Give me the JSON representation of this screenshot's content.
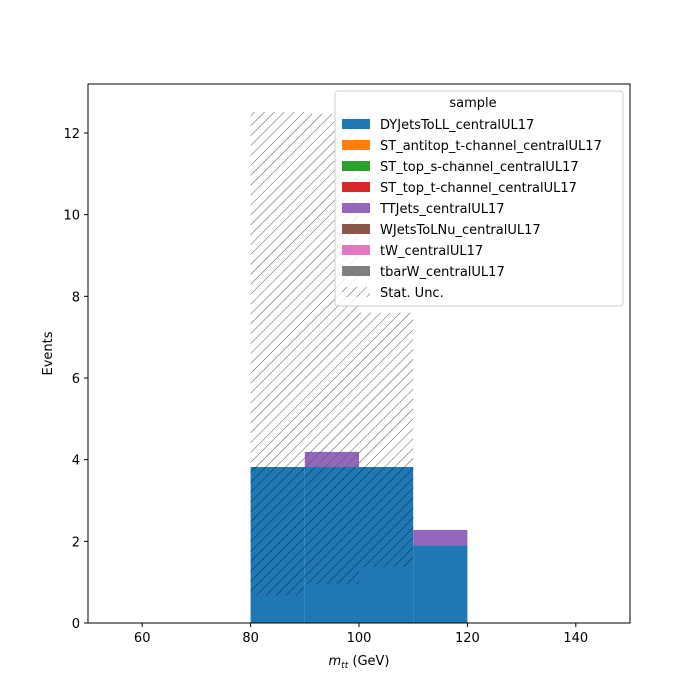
{
  "chart_data": {
    "type": "bar",
    "title": "",
    "xlabel_main": "m",
    "xlabel_sub": "tt",
    "xlabel_unit": " (GeV)",
    "ylabel": "Events",
    "xlim": [
      50,
      150
    ],
    "ylim": [
      0,
      13.2
    ],
    "xticks": [
      60,
      80,
      100,
      120,
      140
    ],
    "yticks": [
      0,
      2,
      4,
      6,
      8,
      10,
      12
    ],
    "bin_edges": [
      80,
      90,
      100,
      110,
      120
    ],
    "series": [
      {
        "name": "DYJetsToLL_centralUL17",
        "color": "#1f77b4",
        "values": [
          3.82,
          3.82,
          3.82,
          1.9
        ]
      },
      {
        "name": "ST_antitop_t-channel_centralUL17",
        "color": "#ff7f0e",
        "values": [
          0,
          0,
          0,
          0
        ]
      },
      {
        "name": "ST_top_s-channel_centralUL17",
        "color": "#2ca02c",
        "values": [
          0,
          0,
          0,
          0
        ]
      },
      {
        "name": "ST_top_t-channel_centralUL17",
        "color": "#d62728",
        "values": [
          0,
          0,
          0,
          0
        ]
      },
      {
        "name": "TTJets_centralUL17",
        "color": "#9467bd",
        "values": [
          0,
          0.37,
          0,
          0.38
        ]
      },
      {
        "name": "WJetsToLNu_centralUL17",
        "color": "#8c564b",
        "values": [
          0,
          0,
          0,
          0
        ]
      },
      {
        "name": "tW_centralUL17",
        "color": "#e377c2",
        "values": [
          0,
          0,
          0,
          0
        ]
      },
      {
        "name": "tbarW_centralUL17",
        "color": "#7f7f7f",
        "values": [
          0,
          0,
          0,
          0
        ]
      }
    ],
    "stat_unc": {
      "name": "Stat. Unc.",
      "low": [
        0.68,
        0.95,
        1.37,
        null
      ],
      "high": [
        12.52,
        12.47,
        7.6,
        null
      ]
    },
    "legend": {
      "title": "sample",
      "placement": "top-right"
    }
  }
}
